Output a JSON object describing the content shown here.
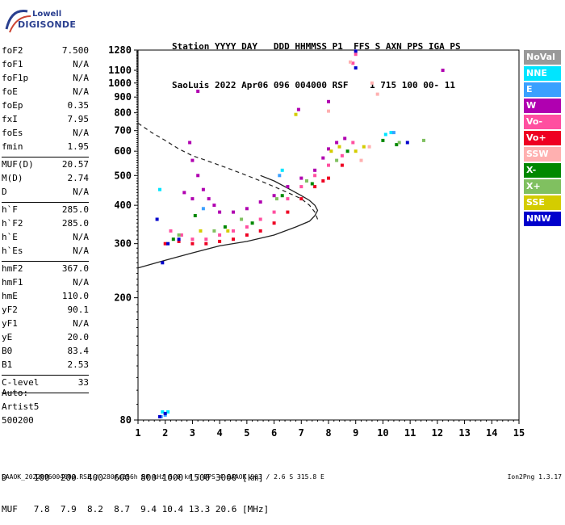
{
  "logo": {
    "line1": "Lowell",
    "line2": "DIGISONDE"
  },
  "header": {
    "row1": "Station YYYY DAY   DDD HHMMSS P1  FFS S AXN PPS IGA PS",
    "row2": "SaoLuis 2022 Apr06 096 004000 RSF    1 715 100 00- 11"
  },
  "params": [
    {
      "name": "foF2",
      "value": "7.500"
    },
    {
      "name": "foF1",
      "value": "N/A"
    },
    {
      "name": "foF1p",
      "value": "N/A"
    },
    {
      "name": "foE",
      "value": "N/A"
    },
    {
      "name": "foEp",
      "value": "0.35"
    },
    {
      "name": "fxI",
      "value": "7.95"
    },
    {
      "name": "foEs",
      "value": "N/A"
    },
    {
      "name": "fmin",
      "value": "1.95"
    },
    {
      "sep": true
    },
    {
      "name": "MUF(D)",
      "value": "20.57"
    },
    {
      "name": "M(D)",
      "value": "2.74"
    },
    {
      "name": "D",
      "value": "N/A"
    },
    {
      "sep": true
    },
    {
      "name": "h`F",
      "value": "285.0"
    },
    {
      "name": "h`F2",
      "value": "285.0"
    },
    {
      "name": "h`E",
      "value": "N/A"
    },
    {
      "name": "h`Es",
      "value": "N/A"
    },
    {
      "sep": true
    },
    {
      "name": "hmF2",
      "value": "367.0"
    },
    {
      "name": "hmF1",
      "value": "N/A"
    },
    {
      "name": "hmE",
      "value": "110.0"
    },
    {
      "name": "yF2",
      "value": "90.1"
    },
    {
      "name": "yF1",
      "value": "N/A"
    },
    {
      "name": "yE",
      "value": "20.0"
    },
    {
      "name": "B0",
      "value": "83.4"
    },
    {
      "name": "B1",
      "value": "2.53"
    },
    {
      "sep": true
    },
    {
      "name": "C-level",
      "value": "33"
    },
    {
      "sep": true
    }
  ],
  "auto": [
    "Auto:",
    "Artist5",
    "500200"
  ],
  "legend": [
    {
      "label": "NoVal",
      "color": "#999999"
    },
    {
      "label": "NNE",
      "color": "#00e5ff"
    },
    {
      "label": "E",
      "color": "#3aa0ff"
    },
    {
      "label": "W",
      "color": "#b000b0"
    },
    {
      "label": "Vo-",
      "color": "#ff4fa0"
    },
    {
      "label": "Vo+",
      "color": "#ee0022"
    },
    {
      "label": "SSW",
      "color": "#ffb0b0"
    },
    {
      "label": "X-",
      "color": "#008800"
    },
    {
      "label": "X+",
      "color": "#80c060"
    },
    {
      "label": "SSE",
      "color": "#d4cc00"
    },
    {
      "label": "NNW",
      "color": "#0000cc"
    }
  ],
  "dtable": {
    "row1": "D     100  200  400  600  800 1000 1500 3000 [km]",
    "row2": "MUF   7.8  7.9  8.2  8.7  9.4 10.4 13.3 20.6 [MHz]"
  },
  "footer": {
    "left": "SAAOK_2022096004000.RSF / 280fx256h 50 kHz 5.0 km / DPS-4 SAAOK 903 / 2.6 S 315.8 E",
    "right": "Ion2Png 1.3.17"
  },
  "chart_data": {
    "type": "scatter",
    "xlabel": "",
    "ylabel": "",
    "xlim": [
      1,
      15
    ],
    "ylim": [
      80,
      1280
    ],
    "x_ticks": [
      1,
      2,
      3,
      4,
      5,
      6,
      7,
      8,
      9,
      10,
      11,
      12,
      13,
      14,
      15
    ],
    "y_ticks": [
      80,
      200,
      300,
      400,
      500,
      600,
      700,
      800,
      900,
      1000,
      1100,
      1280
    ],
    "y_scale": "log",
    "grid": false,
    "legend_placement": "right",
    "series": [
      {
        "name": "NoVal",
        "color": "#999999",
        "points": []
      },
      {
        "name": "NNE",
        "color": "#00e5ff",
        "points": [
          [
            1.9,
            85
          ],
          [
            2.1,
            85
          ],
          [
            1.8,
            450
          ],
          [
            6.3,
            520
          ],
          [
            10.3,
            690
          ],
          [
            10.1,
            680
          ]
        ]
      },
      {
        "name": "E",
        "color": "#3aa0ff",
        "points": [
          [
            1.85,
            82
          ],
          [
            2.0,
            83
          ],
          [
            6.2,
            500
          ],
          [
            3.4,
            390
          ],
          [
            10.4,
            690
          ]
        ]
      },
      {
        "name": "W",
        "color": "#b000b0",
        "points": [
          [
            2.9,
            640
          ],
          [
            3.0,
            560
          ],
          [
            3.2,
            500
          ],
          [
            3.4,
            450
          ],
          [
            3.6,
            420
          ],
          [
            3.8,
            400
          ],
          [
            4.0,
            380
          ],
          [
            4.5,
            380
          ],
          [
            5.0,
            390
          ],
          [
            5.5,
            410
          ],
          [
            6.0,
            430
          ],
          [
            6.5,
            460
          ],
          [
            7.0,
            490
          ],
          [
            7.5,
            520
          ],
          [
            7.8,
            570
          ],
          [
            8.0,
            610
          ],
          [
            8.3,
            640
          ],
          [
            8.6,
            660
          ],
          [
            6.9,
            820
          ],
          [
            8.0,
            870
          ],
          [
            12.2,
            1100
          ],
          [
            3.2,
            940
          ],
          [
            2.7,
            440
          ],
          [
            3.0,
            420
          ]
        ]
      },
      {
        "name": "Vo-",
        "color": "#ff4fa0",
        "points": [
          [
            2.2,
            330
          ],
          [
            2.6,
            320
          ],
          [
            3.0,
            310
          ],
          [
            3.5,
            310
          ],
          [
            4.0,
            320
          ],
          [
            4.5,
            330
          ],
          [
            5.0,
            340
          ],
          [
            5.5,
            360
          ],
          [
            6.0,
            380
          ],
          [
            6.5,
            420
          ],
          [
            7.0,
            460
          ],
          [
            7.5,
            500
          ],
          [
            8.0,
            540
          ],
          [
            8.5,
            580
          ],
          [
            8.9,
            640
          ],
          [
            9.0,
            1240
          ],
          [
            8.9,
            1160
          ]
        ]
      },
      {
        "name": "Vo+",
        "color": "#ee0022",
        "points": [
          [
            2.0,
            300
          ],
          [
            2.5,
            305
          ],
          [
            3.0,
            300
          ],
          [
            3.5,
            300
          ],
          [
            4.0,
            305
          ],
          [
            4.5,
            310
          ],
          [
            5.0,
            320
          ],
          [
            5.5,
            330
          ],
          [
            6.0,
            350
          ],
          [
            6.5,
            380
          ],
          [
            7.0,
            420
          ],
          [
            7.5,
            460
          ],
          [
            8.0,
            490
          ],
          [
            8.5,
            540
          ],
          [
            7.8,
            480
          ]
        ]
      },
      {
        "name": "SSW",
        "color": "#ffb0b0",
        "points": [
          [
            8.8,
            1170
          ],
          [
            9.6,
            1000
          ],
          [
            9.8,
            920
          ],
          [
            8.0,
            810
          ],
          [
            9.0,
            1270
          ],
          [
            9.5,
            620
          ],
          [
            9.2,
            560
          ]
        ]
      },
      {
        "name": "X-",
        "color": "#008800",
        "points": [
          [
            2.3,
            310
          ],
          [
            3.1,
            370
          ],
          [
            4.2,
            340
          ],
          [
            5.2,
            350
          ],
          [
            6.3,
            430
          ],
          [
            7.4,
            470
          ],
          [
            8.7,
            600
          ],
          [
            10.0,
            650
          ],
          [
            10.5,
            630
          ]
        ]
      },
      {
        "name": "X+",
        "color": "#80c060",
        "points": [
          [
            2.5,
            320
          ],
          [
            3.8,
            330
          ],
          [
            4.8,
            360
          ],
          [
            6.1,
            420
          ],
          [
            7.2,
            480
          ],
          [
            8.3,
            560
          ],
          [
            10.6,
            640
          ],
          [
            11.5,
            650
          ]
        ]
      },
      {
        "name": "SSE",
        "color": "#d4cc00",
        "points": [
          [
            3.3,
            330
          ],
          [
            4.3,
            330
          ],
          [
            6.8,
            790
          ],
          [
            8.1,
            600
          ],
          [
            8.4,
            620
          ],
          [
            9.0,
            600
          ],
          [
            9.3,
            620
          ]
        ]
      },
      {
        "name": "NNW",
        "color": "#0000cc",
        "points": [
          [
            1.8,
            82
          ],
          [
            2.0,
            84
          ],
          [
            1.9,
            260
          ],
          [
            1.7,
            360
          ],
          [
            2.1,
            300
          ],
          [
            2.5,
            310
          ],
          [
            9.0,
            1120
          ],
          [
            10.9,
            640
          ],
          [
            9.0,
            1270
          ]
        ]
      }
    ],
    "curves": {
      "dashed_profile": [
        [
          1,
          740
        ],
        [
          1.5,
          690
        ],
        [
          2,
          650
        ],
        [
          2.5,
          610
        ],
        [
          3,
          580
        ],
        [
          3.5,
          560
        ],
        [
          4,
          540
        ],
        [
          4.5,
          520
        ],
        [
          5,
          500
        ],
        [
          5.5,
          480
        ],
        [
          6,
          460
        ],
        [
          6.5,
          440
        ],
        [
          7,
          420
        ],
        [
          7.3,
          400
        ],
        [
          7.5,
          380
        ],
        [
          7.6,
          360
        ]
      ],
      "solid_profile": [
        [
          1,
          250
        ],
        [
          2,
          265
        ],
        [
          3,
          280
        ],
        [
          4,
          295
        ],
        [
          5,
          305
        ],
        [
          6,
          320
        ],
        [
          6.8,
          340
        ],
        [
          7.3,
          355
        ],
        [
          7.5,
          370
        ],
        [
          7.6,
          385
        ],
        [
          7.5,
          400
        ],
        [
          7.3,
          415
        ],
        [
          7,
          430
        ],
        [
          6.5,
          455
        ],
        [
          6,
          480
        ],
        [
          5.5,
          500
        ]
      ]
    }
  }
}
